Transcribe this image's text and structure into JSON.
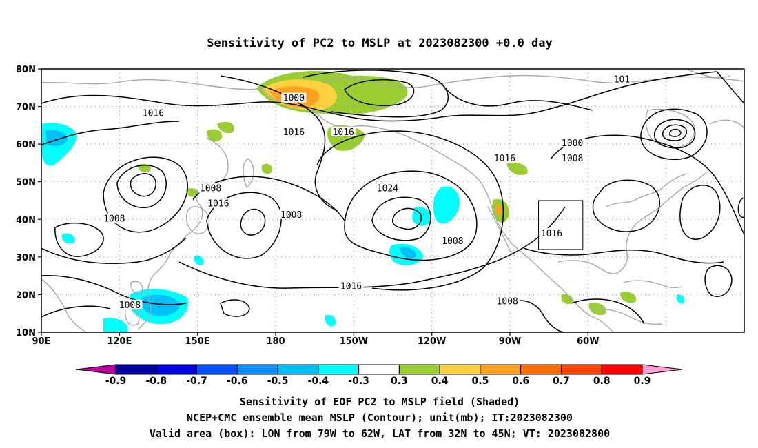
{
  "title": "Sensitivity of PC2 to MSLP at 2023082300 +0.0 day",
  "map": {
    "lon_ticks": [
      "90E",
      "120E",
      "150E",
      "180",
      "150W",
      "120W",
      "90W",
      "60W"
    ],
    "lat_ticks": [
      "80N",
      "70N",
      "60N",
      "50N",
      "40N",
      "30N",
      "20N",
      "10N"
    ],
    "contour_labels": [
      {
        "text": "1000",
        "lon": -173,
        "lat": 72
      },
      {
        "text": "101",
        "lon": -47,
        "lat": 77
      },
      {
        "text": "1016",
        "lon": 133,
        "lat": 68
      },
      {
        "text": "1016",
        "lon": -173,
        "lat": 63
      },
      {
        "text": "1016",
        "lon": -154,
        "lat": 63
      },
      {
        "text": "1000",
        "lon": -66,
        "lat": 60
      },
      {
        "text": "1008",
        "lon": -66,
        "lat": 56
      },
      {
        "text": "1016",
        "lon": -92,
        "lat": 56
      },
      {
        "text": "1008",
        "lon": 155,
        "lat": 48
      },
      {
        "text": "1024",
        "lon": -137,
        "lat": 48
      },
      {
        "text": "1016",
        "lon": 158,
        "lat": 44
      },
      {
        "text": "1008",
        "lon": 118,
        "lat": 40
      },
      {
        "text": "1008",
        "lon": -174,
        "lat": 41
      },
      {
        "text": "1016",
        "lon": -74,
        "lat": 36
      },
      {
        "text": "1008",
        "lon": -112,
        "lat": 34
      },
      {
        "text": "1016",
        "lon": -151,
        "lat": 22
      },
      {
        "text": "1008",
        "lon": 124,
        "lat": 17
      },
      {
        "text": "1008",
        "lon": -91,
        "lat": 18
      }
    ]
  },
  "valid_box": {
    "lon_min": -79,
    "lon_max": -62,
    "lat_min": 32,
    "lat_max": 45
  },
  "colorbar": {
    "labels": [
      "-0.9",
      "-0.8",
      "-0.7",
      "-0.6",
      "-0.5",
      "-0.4",
      "-0.3",
      "0.3",
      "0.4",
      "0.5",
      "0.6",
      "0.7",
      "0.8",
      "0.9"
    ],
    "colors": [
      "#0000a0",
      "#0000e0",
      "#0050ff",
      "#0a90ff",
      "#00c0f8",
      "#00ffff",
      "#ffffff",
      "#9acd32",
      "#ffd040",
      "#ffa020",
      "#ff7000",
      "#ff4500",
      "#ff0000"
    ],
    "low_arrow_color": "#c000a0",
    "high_arrow_color": "#ffa0d0"
  },
  "captions": [
    "Sensitivity of EOF PC2 to MSLP field (Shaded)",
    "NCEP+CMC ensemble mean MSLP (Contour); unit(mb); IT:2023082300",
    "Valid area (box): LON from 79W to 62W, LAT from 32N to 45N; VT: 2023082800"
  ]
}
